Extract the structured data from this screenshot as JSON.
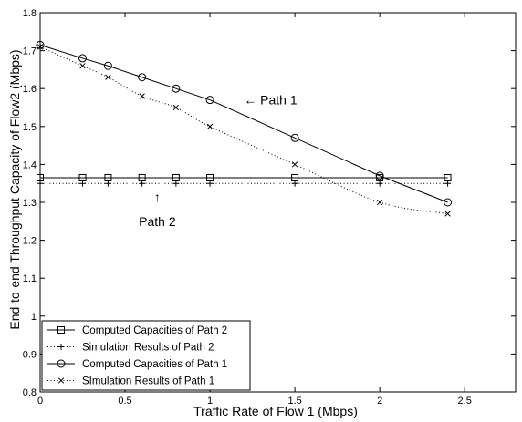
{
  "chart_data": {
    "type": "line",
    "xlabel": "Traffic Rate of Flow 1 (Mbps)",
    "ylabel": "End-to-end Throughput Capacity of Flow2 (Mbps)",
    "xlim": [
      0,
      2.8
    ],
    "ylim": [
      0.8,
      1.8
    ],
    "x_ticks": [
      "0",
      "0.5",
      "1",
      "1.5",
      "2",
      "2.5"
    ],
    "y_ticks": [
      "0.8",
      "0.9",
      "1",
      "1.1",
      "1.2",
      "1.3",
      "1.4",
      "1.5",
      "1.6",
      "1.7",
      "1.8"
    ],
    "grid": false,
    "legend_position": "bottom-left",
    "series": [
      {
        "name": "Computed Capacities of Path 2",
        "line": "solid",
        "marker": "square",
        "x": [
          0,
          0.25,
          0.4,
          0.6,
          0.8,
          1.0,
          1.5,
          2.0,
          2.4
        ],
        "y": [
          1.365,
          1.365,
          1.365,
          1.365,
          1.365,
          1.365,
          1.365,
          1.365,
          1.365
        ]
      },
      {
        "name": "Simulation Results of Path 2",
        "line": "dotted",
        "marker": "plus",
        "x": [
          0,
          0.25,
          0.4,
          0.6,
          0.8,
          1.0,
          1.5,
          2.0,
          2.4
        ],
        "y": [
          1.35,
          1.35,
          1.35,
          1.35,
          1.35,
          1.35,
          1.35,
          1.35,
          1.35
        ]
      },
      {
        "name": "Computed Capacities of Path 1",
        "line": "solid",
        "marker": "circle",
        "x": [
          0,
          0.25,
          0.4,
          0.6,
          0.8,
          1.0,
          1.5,
          2.0,
          2.4
        ],
        "y": [
          1.715,
          1.68,
          1.66,
          1.63,
          1.6,
          1.57,
          1.47,
          1.37,
          1.3
        ]
      },
      {
        "name": "SImulation Results of Path 1",
        "line": "dotted",
        "marker": "x",
        "x": [
          0,
          0.25,
          0.4,
          0.6,
          0.8,
          1.0,
          1.5,
          2.0,
          2.4
        ],
        "y": [
          1.71,
          1.66,
          1.63,
          1.58,
          1.55,
          1.5,
          1.4,
          1.3,
          1.27
        ]
      }
    ],
    "annotations": [
      {
        "text": "← Path 1",
        "x": 1.2,
        "y": 1.57
      },
      {
        "text": "↑",
        "x": 0.69,
        "y": 1.315
      },
      {
        "text": "Path 2",
        "x": 0.69,
        "y": 1.25
      }
    ]
  }
}
